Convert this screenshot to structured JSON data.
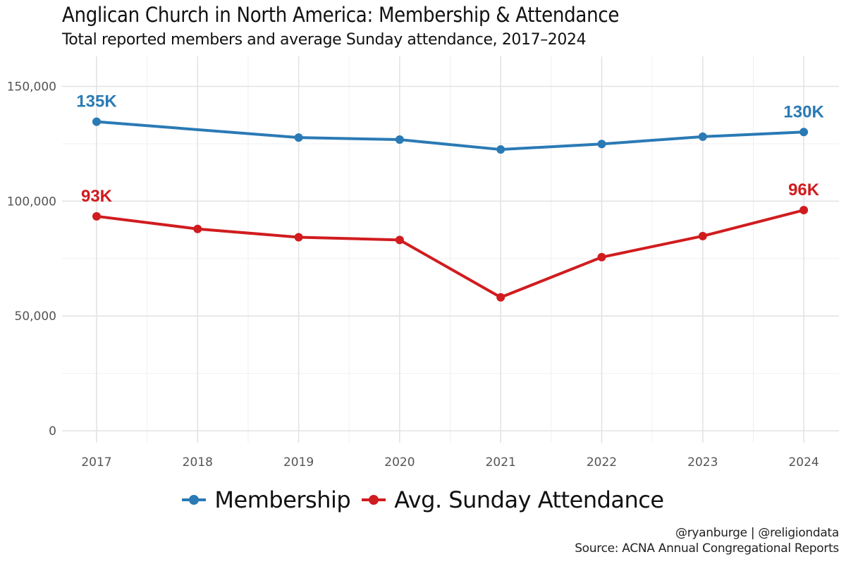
{
  "title": "Anglican Church in North America: Membership & Attendance",
  "subtitle": "Total reported members and average Sunday attendance, 2017–2024",
  "caption": {
    "line1": "@ryanburge | @religiondata",
    "line2": "Source: ACNA Annual Congregational Reports"
  },
  "legend": {
    "position": "bottom",
    "items": [
      {
        "label": "Membership",
        "color": "#2a7ab5"
      },
      {
        "label": "Avg. Sunday Attendance",
        "color": "#d01c1f"
      }
    ]
  },
  "chart_data": {
    "type": "line",
    "x": [
      "2017",
      "2018",
      "2019",
      "2020",
      "2021",
      "2022",
      "2023",
      "2024"
    ],
    "ylim": [
      0,
      160000
    ],
    "yticks": [
      0,
      50000,
      100000,
      150000
    ],
    "ytick_labels": [
      "0",
      "50,000",
      "100,000",
      "150,000"
    ],
    "grid": true,
    "series": [
      {
        "name": "Membership",
        "color": "#2a7ab5",
        "values": [
          134600,
          null,
          127700,
          126800,
          122500,
          124900,
          128100,
          130100
        ],
        "end_labels": {
          "first": "135K",
          "last": "130K"
        }
      },
      {
        "name": "Avg. Sunday Attendance",
        "color": "#d01c1f",
        "values": [
          93400,
          87900,
          84300,
          83100,
          58100,
          75600,
          84800,
          96100
        ],
        "end_labels": {
          "first": "93K",
          "last": "96K"
        }
      }
    ]
  }
}
